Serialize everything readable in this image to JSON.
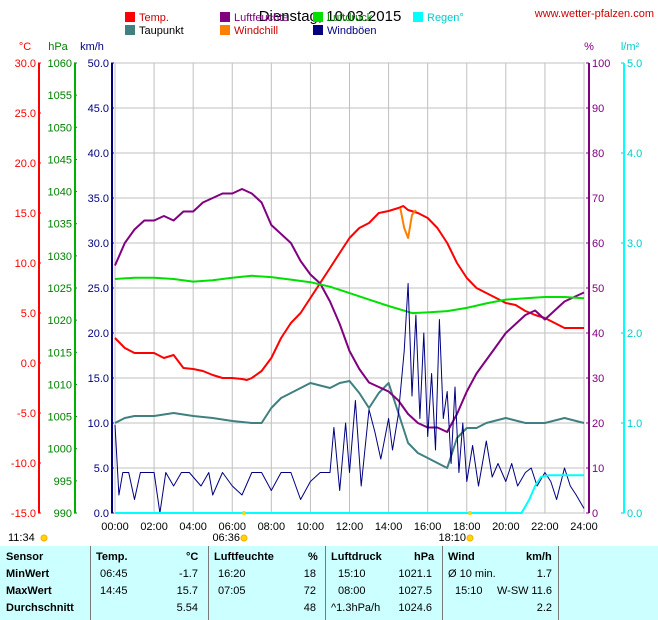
{
  "chart_data": {
    "type": "line",
    "title": "Dienstag, 10.03.2015",
    "source": "www.wetter-pfalzen.com",
    "legend": [
      {
        "name": "Temp.",
        "color": "#ff0000"
      },
      {
        "name": "Luftfeuchte",
        "color": "#800080"
      },
      {
        "name": "Luftdruck",
        "color": "#00e000"
      },
      {
        "name": "Regen°",
        "color": "#00ffff"
      },
      {
        "name": "Taupunkt",
        "color": "#408080"
      },
      {
        "name": "Windchill",
        "color": "#ff8000"
      },
      {
        "name": "Windböen",
        "color": "#000080"
      }
    ],
    "axes": {
      "temp": {
        "unit": "°C",
        "ticks": [
          "30.0",
          "25.0",
          "20.0",
          "15.0",
          "10.0",
          "5.0",
          "0.0",
          "-5.0",
          "-10.0",
          "-15.0"
        ],
        "color": "#ff0000",
        "range": [
          -15,
          30
        ]
      },
      "pressure": {
        "unit": "hPa",
        "ticks": [
          "1060",
          "1055",
          "1050",
          "1045",
          "1040",
          "1035",
          "1030",
          "1025",
          "1020",
          "1015",
          "1010",
          "1005",
          "1000",
          "995",
          "990"
        ],
        "color": "#008000",
        "range": [
          990,
          1060
        ]
      },
      "wind": {
        "unit": "km/h",
        "ticks": [
          "50.0",
          "45.0",
          "40.0",
          "35.0",
          "30.0",
          "25.0",
          "20.0",
          "15.0",
          "10.0",
          "5.0",
          "0.0"
        ],
        "color": "#000080",
        "range": [
          0,
          50
        ]
      },
      "humidity": {
        "unit": "%",
        "ticks": [
          "100",
          "90",
          "80",
          "70",
          "60",
          "50",
          "40",
          "30",
          "20",
          "10",
          "0"
        ],
        "color": "#800080",
        "range": [
          0,
          100
        ]
      },
      "rain": {
        "unit": "l/m²",
        "ticks": [
          "5.0",
          "4.0",
          "3.0",
          "2.0",
          "1.0",
          "0.0"
        ],
        "color": "#00e0e0",
        "range": [
          0,
          5
        ]
      },
      "x": {
        "ticks": [
          "00:00",
          "02:00",
          "04:00",
          "06:00",
          "08:00",
          "10:00",
          "12:00",
          "14:00",
          "16:00",
          "18:00",
          "20:00",
          "22:00",
          "24:00"
        ],
        "range": [
          0,
          24
        ]
      }
    },
    "sun": {
      "moonrise": "11:34",
      "sunrise": "06:36",
      "sunset": "18:10"
    },
    "series": [
      {
        "name": "Temp.",
        "axis": "temp",
        "color": "#ff0000",
        "x": [
          0,
          0.5,
          1,
          1.5,
          2,
          2.5,
          3,
          3.5,
          4,
          4.5,
          5,
          5.5,
          6,
          6.5,
          6.75,
          7,
          7.5,
          8,
          8.5,
          9,
          9.5,
          10,
          10.5,
          11,
          11.5,
          12,
          12.5,
          13,
          13.5,
          14,
          14.5,
          14.75,
          15,
          15.5,
          16,
          16.5,
          17,
          17.5,
          18,
          18.5,
          19,
          19.5,
          20,
          20.5,
          21,
          21.5,
          22,
          22.5,
          23,
          23.5,
          24
        ],
        "y": [
          2.5,
          1.5,
          1.0,
          1.0,
          1.0,
          0.5,
          0.8,
          -0.5,
          -0.6,
          -0.8,
          -1.2,
          -1.5,
          -1.5,
          -1.6,
          -1.7,
          -1.5,
          -0.8,
          0.5,
          2.5,
          4.0,
          5.0,
          6.5,
          8.0,
          9.5,
          11.0,
          12.5,
          13.5,
          14.0,
          15.0,
          15.2,
          15.5,
          15.7,
          15.3,
          15.0,
          14.5,
          13.5,
          12.0,
          10.0,
          8.5,
          7.5,
          7.0,
          6.5,
          6.0,
          5.8,
          5.2,
          4.8,
          4.5,
          4.0,
          3.5,
          3.5,
          3.5
        ]
      },
      {
        "name": "Taupunkt",
        "axis": "temp",
        "color": "#408080",
        "x": [
          0,
          0.5,
          1,
          2,
          3,
          4,
          5,
          6,
          7,
          7.5,
          8,
          8.5,
          9,
          10,
          11,
          11.5,
          12,
          12.5,
          13,
          13.5,
          14,
          14.5,
          15,
          15.5,
          16,
          16.5,
          17,
          17.5,
          18,
          18.5,
          19,
          20,
          21,
          22,
          23,
          24
        ],
        "y": [
          -6.0,
          -5.5,
          -5.3,
          -5.3,
          -5.0,
          -5.3,
          -5.5,
          -5.8,
          -6.0,
          -6.0,
          -4.5,
          -3.5,
          -3.0,
          -2.0,
          -2.5,
          -2.0,
          -1.8,
          -3.0,
          -4.5,
          -3.0,
          -2.0,
          -5.0,
          -8.0,
          -9.0,
          -9.5,
          -10.0,
          -10.5,
          -7.5,
          -6.5,
          -6.5,
          -6.0,
          -5.5,
          -6.0,
          -6.0,
          -5.5,
          -6.0
        ]
      },
      {
        "name": "Windchill",
        "axis": "temp",
        "color": "#ff8000",
        "x": [
          14.6,
          14.8,
          15.0,
          15.2,
          15.4
        ],
        "y": [
          15.5,
          13.5,
          12.5,
          14.8,
          15.3
        ]
      },
      {
        "name": "Luftfeuchte",
        "axis": "humidity",
        "color": "#800080",
        "x": [
          0,
          0.5,
          1,
          1.5,
          2,
          2.5,
          3,
          3.5,
          4,
          4.5,
          5,
          5.5,
          6,
          6.5,
          7,
          7.5,
          8,
          8.5,
          9,
          9.5,
          10,
          10.5,
          11,
          11.5,
          12,
          12.5,
          13,
          13.5,
          14,
          14.5,
          15,
          15.5,
          16,
          16.5,
          17,
          17.5,
          18,
          18.5,
          19,
          19.5,
          20,
          20.5,
          21,
          21.5,
          22,
          22.5,
          23,
          23.5,
          24
        ],
        "y": [
          55,
          60,
          63,
          65,
          65,
          66,
          65,
          67,
          67,
          69,
          70,
          71,
          71,
          72,
          71,
          69,
          64,
          62,
          60,
          56,
          53,
          51,
          47,
          42,
          36,
          32,
          29,
          28,
          27,
          25,
          22,
          20,
          19,
          19,
          18,
          22,
          27,
          31,
          34,
          37,
          40,
          42,
          44,
          45,
          43,
          45,
          47,
          48,
          49
        ]
      },
      {
        "name": "Luftdruck",
        "axis": "pressure",
        "color": "#00e000",
        "x": [
          0,
          1,
          2,
          3,
          4,
          5,
          6,
          7,
          8,
          9,
          10,
          11,
          12,
          13,
          14,
          15,
          15.2,
          16,
          17,
          18,
          19,
          20,
          21,
          22,
          23,
          24
        ],
        "y": [
          1026.4,
          1026.6,
          1026.6,
          1026.4,
          1026.0,
          1026.2,
          1026.6,
          1026.9,
          1026.7,
          1026.3,
          1025.9,
          1025.2,
          1024.2,
          1023.2,
          1022.2,
          1021.3,
          1021.1,
          1021.2,
          1021.4,
          1021.9,
          1022.6,
          1023.2,
          1023.4,
          1023.6,
          1023.6,
          1023.4
        ]
      },
      {
        "name": "Windböen",
        "axis": "wind",
        "color": "#000080",
        "x": [
          0,
          0.2,
          0.4,
          0.7,
          1,
          1.3,
          1.6,
          2,
          2.3,
          2.6,
          3,
          3.4,
          3.8,
          4,
          4.4,
          4.8,
          5,
          5.5,
          6,
          6.5,
          7,
          7.5,
          8,
          8.5,
          9,
          9.5,
          10,
          10.5,
          11,
          11.2,
          11.5,
          11.8,
          12,
          12.3,
          12.6,
          13,
          13.3,
          13.6,
          14,
          14.2,
          14.5,
          14.8,
          15,
          15.2,
          15.4,
          15.6,
          15.8,
          16,
          16.2,
          16.4,
          16.6,
          16.8,
          17,
          17.2,
          17.4,
          17.6,
          17.8,
          18,
          18.3,
          18.6,
          19,
          19.3,
          19.6,
          20,
          20.3,
          20.6,
          21,
          21.3,
          21.6,
          22,
          22.3,
          22.6,
          23,
          23.3,
          23.6,
          24
        ],
        "y": [
          9.8,
          2.0,
          4.5,
          4.5,
          1.5,
          4.5,
          4.5,
          4.5,
          0.0,
          4.5,
          3.0,
          4.5,
          4.5,
          4.0,
          3.0,
          4.5,
          2.0,
          4.5,
          3.0,
          2.0,
          4.5,
          4.5,
          2.5,
          4.5,
          4.5,
          1.5,
          3.5,
          4.5,
          4.5,
          9.5,
          2.5,
          10.0,
          4.5,
          12.5,
          3.0,
          11.5,
          9.0,
          6.0,
          10.5,
          7.0,
          11.0,
          18.0,
          25.5,
          13.0,
          22.0,
          10.5,
          20.0,
          8.5,
          15.5,
          7.0,
          21.5,
          10.5,
          13.5,
          5.5,
          14.0,
          4.5,
          10.0,
          3.5,
          7.5,
          3.0,
          8.0,
          4.0,
          5.5,
          3.5,
          5.5,
          3.0,
          4.5,
          5.0,
          3.0,
          4.5,
          3.5,
          1.5,
          5.0,
          3.0,
          2.0,
          0.5
        ]
      },
      {
        "name": "Regen°",
        "axis": "rain",
        "color": "#00ffff",
        "x": [
          0,
          18.2,
          20.8,
          21.2,
          21.5,
          21.8,
          22.2,
          22.5,
          23,
          23.5,
          24
        ],
        "y": [
          0,
          0,
          0,
          0.15,
          0.3,
          0.4,
          0.42,
          0.42,
          0.42,
          0.42,
          0.42
        ]
      }
    ]
  },
  "stats": {
    "headers": {
      "sensor": "Sensor",
      "temp": "Temp.",
      "temp_unit": "°C",
      "hum": "Luftfeuchte",
      "hum_unit": "%",
      "press": "Luftdruck",
      "press_unit": "hPa",
      "wind": "Wind",
      "wind_unit": "km/h"
    },
    "rows": [
      {
        "label": "MinWert",
        "temp_time": "06:45",
        "temp_val": "-1.7",
        "hum_time": "16:20",
        "hum_val": "18",
        "press_time": "15:10",
        "press_val": "1021.1",
        "wind_time": "Ø 10 min.",
        "wind_dir": "",
        "wind_val": "1.7"
      },
      {
        "label": "MaxWert",
        "temp_time": "14:45",
        "temp_val": "15.7",
        "hum_time": "07:05",
        "hum_val": "72",
        "press_time": "08:00",
        "press_val": "1027.5",
        "wind_time": "15:10",
        "wind_dir": "W-SW",
        "wind_val": "11.6"
      },
      {
        "label": "Durchschnitt",
        "temp_time": "",
        "temp_val": "5.54",
        "hum_time": "",
        "hum_val": "48",
        "press_time": "^1.3hPa/h",
        "press_val": "1024.6",
        "wind_time": "",
        "wind_dir": "",
        "wind_val": "2.2"
      }
    ]
  }
}
